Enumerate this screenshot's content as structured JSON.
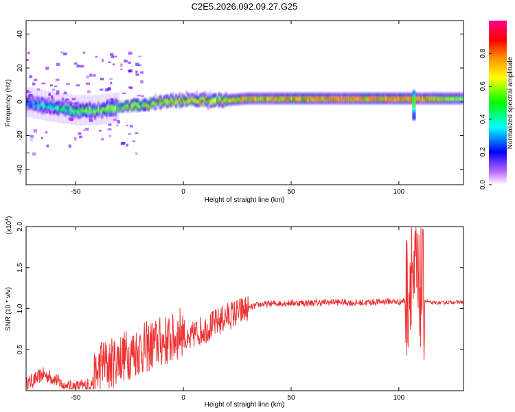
{
  "title": "C2E5.2026.092.09.27.G25",
  "chart_data": [
    {
      "type": "heatmap",
      "xlabel": "Height of straight line (km)",
      "ylabel": "Frequency (Hz)",
      "xlim": [
        -73,
        130
      ],
      "ylim": [
        -49,
        48
      ],
      "x_ticks": [
        -50,
        0,
        50,
        100
      ],
      "y_ticks": [
        -40,
        -20,
        0,
        20,
        40
      ],
      "colorbar": {
        "label": "Normalized spectral amplitude",
        "range": [
          0,
          1
        ],
        "ticks": [
          0.0,
          0.2,
          0.4,
          0.6,
          0.8
        ],
        "colormap": [
          "#ffffff",
          "#8800ff",
          "#0000ff",
          "#00ffff",
          "#00ff00",
          "#ffff00",
          "#ff8800",
          "#ff0000",
          "#ff0088"
        ]
      },
      "ridge": [
        {
          "x": -73,
          "y": 0,
          "amp": 0.35
        },
        {
          "x": -60,
          "y": -3,
          "amp": 0.45
        },
        {
          "x": -50,
          "y": -5,
          "amp": 0.55
        },
        {
          "x": -40,
          "y": -5,
          "amp": 0.6
        },
        {
          "x": -30,
          "y": -3,
          "amp": 0.6
        },
        {
          "x": -20,
          "y": -2,
          "amp": 0.65
        },
        {
          "x": -10,
          "y": 0,
          "amp": 0.7
        },
        {
          "x": 0,
          "y": 1,
          "amp": 0.75
        },
        {
          "x": 10,
          "y": 1,
          "amp": 0.75
        },
        {
          "x": 20,
          "y": 1,
          "amp": 0.75
        },
        {
          "x": 30,
          "y": 2,
          "amp": 0.8
        },
        {
          "x": 50,
          "y": 2,
          "amp": 0.85
        },
        {
          "x": 70,
          "y": 2,
          "amp": 0.9
        },
        {
          "x": 90,
          "y": 2,
          "amp": 0.9
        },
        {
          "x": 105,
          "y": 2,
          "amp": 0.95
        },
        {
          "x": 110,
          "y": 2,
          "amp": 0.85
        },
        {
          "x": 130,
          "y": 2,
          "amp": 0.6
        }
      ]
    },
    {
      "type": "line",
      "xlabel": "Height of straight line (km)",
      "ylabel": "SNR (10 * v/v)",
      "y_multiplier": "(x10",
      "y_multiplier_exp": "4",
      "y_multiplier_close": ")",
      "xlim": [
        -73,
        130
      ],
      "ylim": [
        0,
        2.0
      ],
      "x_ticks": [
        -50,
        0,
        50,
        100
      ],
      "y_ticks": [
        0.5,
        1.0,
        1.5,
        2.0
      ],
      "color": "#ee3333",
      "series": [
        {
          "x": [
            -73,
            -70,
            -65,
            -60,
            -55,
            -50,
            -45,
            -42,
            -40,
            -38,
            -35,
            -30,
            -25,
            -20,
            -15,
            -10,
            -5,
            -2,
            0,
            2,
            5,
            10,
            15,
            20,
            25,
            30,
            35,
            40,
            50,
            60,
            70,
            80,
            90,
            95,
            100,
            103,
            105,
            106,
            107,
            108,
            109,
            110,
            112,
            115,
            120,
            125,
            130
          ],
          "y": [
            0.08,
            0.12,
            0.2,
            0.15,
            0.05,
            0.04,
            0.06,
            0.1,
            0.2,
            0.35,
            0.3,
            0.4,
            0.45,
            0.5,
            0.55,
            0.6,
            0.62,
            0.7,
            0.75,
            0.55,
            0.7,
            0.75,
            0.82,
            0.9,
            0.95,
            1.0,
            1.05,
            1.06,
            1.07,
            1.07,
            1.08,
            1.07,
            1.08,
            1.09,
            1.08,
            1.1,
            1.3,
            1.7,
            1.0,
            1.6,
            1.0,
            1.3,
            1.1,
            1.07,
            1.07,
            1.08,
            1.08
          ]
        }
      ]
    }
  ]
}
